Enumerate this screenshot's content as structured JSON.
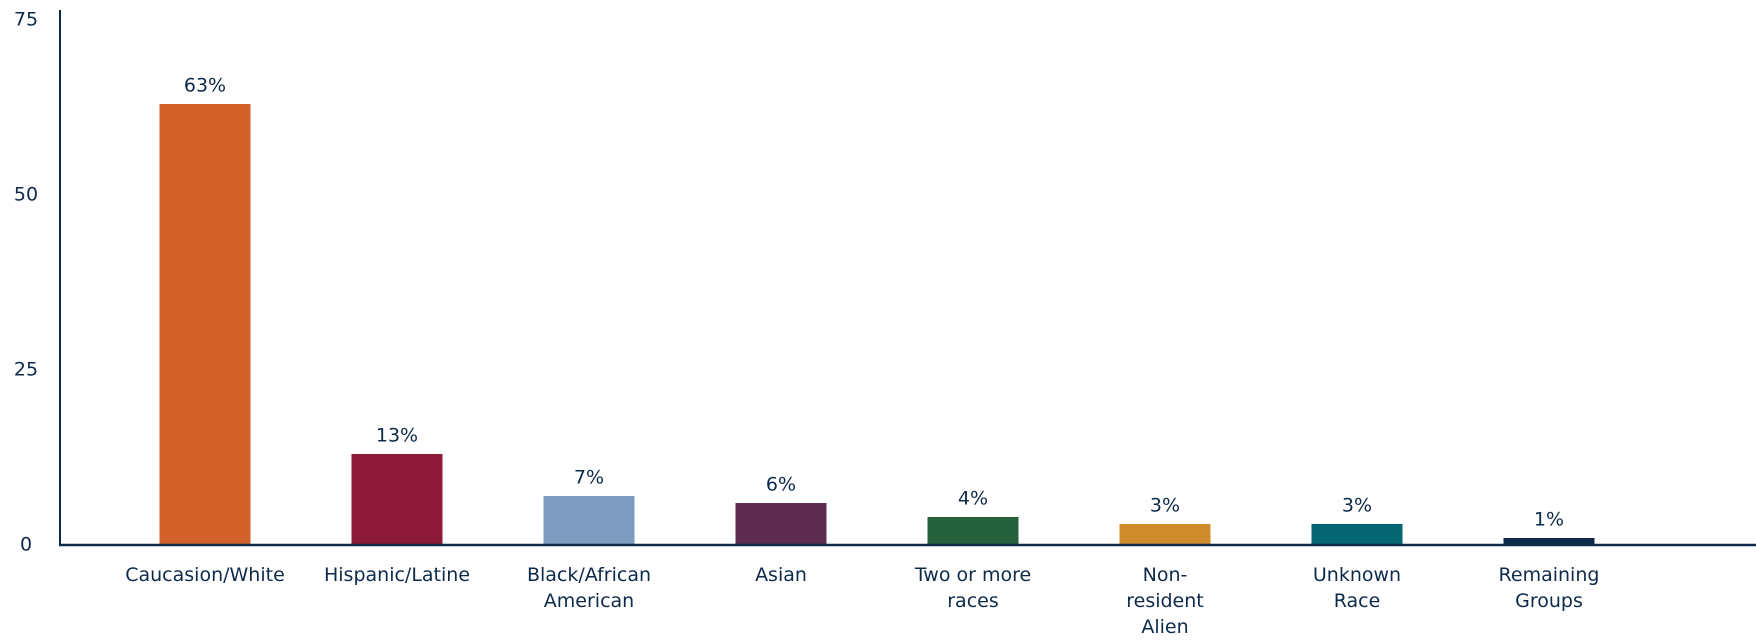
{
  "chart_data": {
    "type": "bar",
    "categories": [
      "Caucasion/White",
      "Hispanic/Latine",
      "Black/African American",
      "Asian",
      "Two or more races",
      "Non-resident Alien",
      "Unknown Race",
      "Remaining Groups"
    ],
    "values": [
      63,
      13,
      7,
      6,
      4,
      3,
      3,
      1
    ],
    "value_labels": [
      "63%",
      "13%",
      "7%",
      "6%",
      "4%",
      "3%",
      "3%",
      "1%"
    ],
    "colors": [
      "#d2622a",
      "#8c1a38",
      "#7f9cc0",
      "#5e2c50",
      "#23603b",
      "#d08c2c",
      "#046671",
      "#0d2a4a"
    ],
    "ylim": [
      0,
      75
    ],
    "yticks": [
      0,
      25,
      50,
      75
    ],
    "grid": false
  }
}
